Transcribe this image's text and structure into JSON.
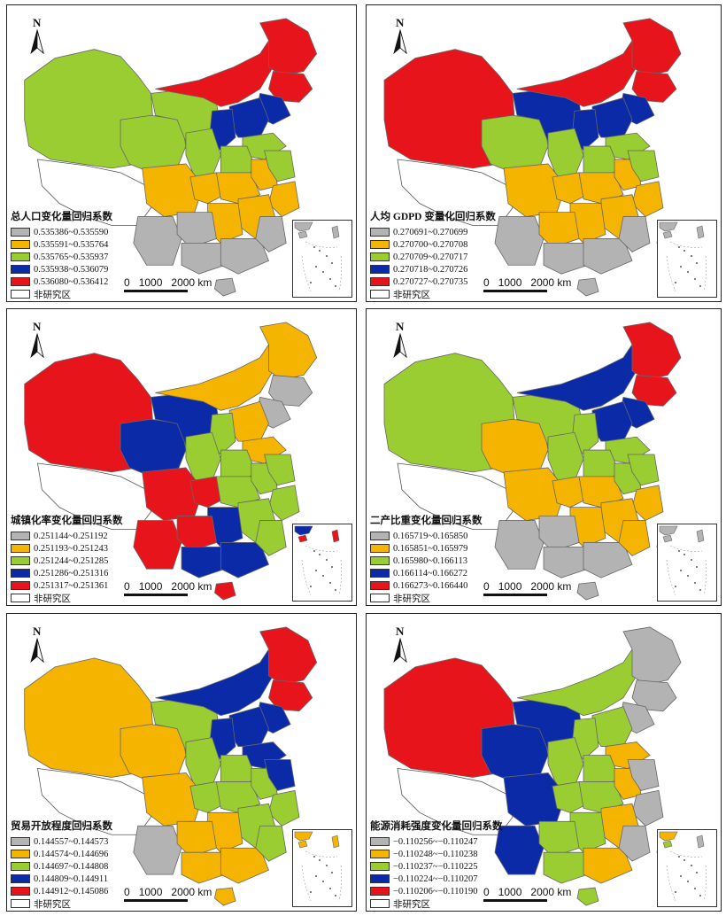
{
  "colors": {
    "gray": "#b3b3b3",
    "orange": "#f5b400",
    "green": "#9acd32",
    "blue": "#0a2aa8",
    "red": "#e8141c",
    "none": "#ffffff"
  },
  "north_label": "N",
  "scale": {
    "a": "0",
    "b": "1000",
    "c": "2000 km"
  },
  "panels": [
    {
      "title": "总人口变化量回归系数",
      "items": [
        "0.535386~0.535590",
        "0.535591~0.535764",
        "0.535765~0.535937",
        "0.535938~0.536079",
        "0.536080~0.536412"
      ],
      "none_label": "非研究区"
    },
    {
      "title": "人均 GDPD 变量化回归系数",
      "items": [
        "0.270691~0.270699",
        "0.270700~0.270708",
        "0.270709~0.270717",
        "0.270718~0.270726",
        "0.270727~0.270735"
      ],
      "none_label": "非研究区"
    },
    {
      "title": "城镇化率变化量回归系数",
      "items": [
        "0.251144~0.251192",
        "0.251193~0.251243",
        "0.251244~0.251285",
        "0.251286~0.251316",
        "0.251317~0.251361"
      ],
      "none_label": "非研究区"
    },
    {
      "title": "二产比重变化量回归系数",
      "items": [
        "0.165719~0.165850",
        "0.165851~0.165979",
        "0.165980~0.166113",
        "0.166114~0.166272",
        "0.166273~0.166440"
      ],
      "none_label": "非研究区"
    },
    {
      "title": "贸易开放程度回归系数",
      "items": [
        "0.144557~0.144573",
        "0.144574~0.144696",
        "0.144697~0.144808",
        "0.144809~0.144911",
        "0.144912~0.145086"
      ],
      "none_label": "非研究区"
    },
    {
      "title": "能源消耗强度变化量回归系数",
      "items": [
        "−0.110256~−0.110247",
        "−0.110248~−0.110238",
        "−0.110237~−0.110225",
        "−0.110224~−0.110207",
        "−0.110206~−0.110190"
      ],
      "none_label": "非研究区"
    }
  ]
}
